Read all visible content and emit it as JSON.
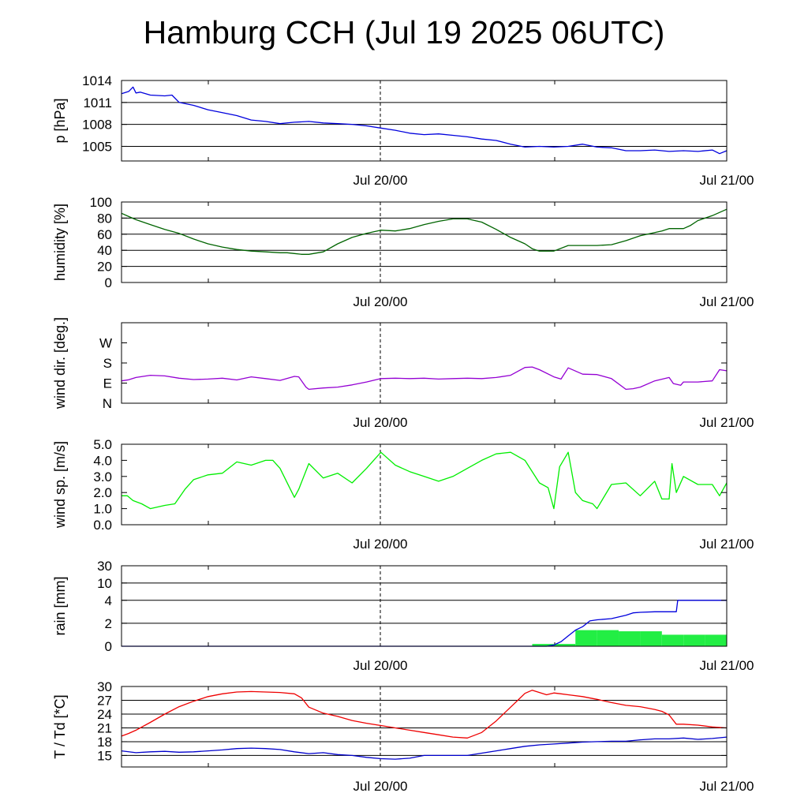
{
  "title": "Hamburg CCH (Jul 19 2025 06UTC)",
  "colors": {
    "pressure": "#0000dd",
    "humidity": "#006400",
    "wind_dir": "#9400d3",
    "wind_speed": "#00ee00",
    "rain_cumulative": "#0000dd",
    "rain_bars": "#22ee44",
    "temperature": "#ee0000",
    "dewpoint": "#0000cc"
  },
  "chart_data": [
    {
      "id": "pressure",
      "type": "line",
      "ylabel": "p [hPa]",
      "x_unit": "hours since Jul 19 06UTC",
      "xlim": [
        0,
        42
      ],
      "ylim": [
        1003,
        1014
      ],
      "yticks": [
        1005,
        1008,
        1011,
        1014
      ],
      "ytick_labels": [
        "1005",
        "1008",
        "1011",
        "1014"
      ],
      "grid_y": [
        1005,
        1008,
        1011,
        1014
      ],
      "xtick_labels": [
        "Jul 20/00",
        "Jul 21/00"
      ],
      "series": [
        {
          "color_key": "pressure",
          "x": [
            0,
            0.5,
            0.8,
            1.0,
            1.3,
            2,
            3,
            3.5,
            4,
            5,
            6,
            7,
            8,
            9,
            10,
            11,
            12,
            13,
            14,
            15,
            16,
            17,
            18,
            19,
            20,
            21,
            22,
            23,
            24,
            25,
            26,
            27,
            28,
            29,
            30,
            31,
            32,
            33,
            34,
            35,
            36,
            37,
            38,
            39,
            40,
            41,
            41.5,
            42
          ],
          "y": [
            1012.2,
            1012.5,
            1013.1,
            1012.3,
            1012.4,
            1012.0,
            1011.9,
            1012.0,
            1011.0,
            1010.6,
            1010.0,
            1009.6,
            1009.2,
            1008.6,
            1008.4,
            1008.1,
            1008.3,
            1008.4,
            1008.2,
            1008.1,
            1008.0,
            1007.8,
            1007.5,
            1007.2,
            1006.8,
            1006.6,
            1006.7,
            1006.5,
            1006.3,
            1006.0,
            1005.8,
            1005.3,
            1004.9,
            1005.0,
            1004.9,
            1005.0,
            1005.3,
            1004.9,
            1004.8,
            1004.4,
            1004.4,
            1004.5,
            1004.3,
            1004.4,
            1004.3,
            1004.5,
            1004.0,
            1004.4
          ]
        }
      ]
    },
    {
      "id": "humidity",
      "type": "line",
      "ylabel": "humidity [%]",
      "x_unit": "hours since Jul 19 06UTC",
      "xlim": [
        0,
        42
      ],
      "ylim": [
        0,
        100
      ],
      "yticks": [
        0,
        20,
        40,
        60,
        80,
        100
      ],
      "ytick_labels": [
        "0",
        "20",
        "40",
        "60",
        "80",
        "100"
      ],
      "grid_y": [
        20,
        40,
        60,
        80
      ],
      "xtick_labels": [
        "Jul 20/00",
        "Jul 21/00"
      ],
      "series": [
        {
          "color_key": "humidity",
          "x": [
            0,
            0.5,
            1,
            2,
            3,
            4,
            5,
            6,
            7,
            8,
            9,
            10,
            11,
            11.5,
            12,
            12.5,
            13,
            14,
            15,
            16,
            17,
            18,
            19,
            20,
            21,
            22,
            23,
            24,
            25,
            26,
            27,
            28,
            28.5,
            29,
            30,
            31,
            32,
            33,
            34,
            35,
            36,
            37,
            37.5,
            38,
            39,
            39.5,
            40,
            41,
            42
          ],
          "y": [
            86,
            82,
            78,
            72,
            66,
            61,
            54,
            48,
            44,
            41,
            39,
            38,
            37,
            37,
            36,
            35,
            35,
            38,
            48,
            56,
            61,
            65,
            64,
            67,
            72,
            76,
            79,
            79,
            75,
            66,
            56,
            48,
            42,
            39,
            39,
            46,
            46,
            46,
            47,
            52,
            58,
            62,
            64,
            67,
            67,
            71,
            77,
            83,
            91
          ]
        }
      ]
    },
    {
      "id": "wind_dir",
      "type": "line",
      "ylabel": "wind dir. [deg.]",
      "x_unit": "hours since Jul 19 06UTC",
      "xlim": [
        0,
        42
      ],
      "ylim": [
        0,
        360
      ],
      "yticks": [
        0,
        90,
        180,
        270
      ],
      "ytick_labels": [
        "N",
        "E",
        "S",
        "W"
      ],
      "grid_y": [],
      "xtick_labels": [
        "Jul 20/00",
        "Jul 21/00"
      ],
      "series": [
        {
          "color_key": "wind_dir",
          "x": [
            0,
            0.5,
            1,
            2,
            3,
            4,
            5,
            6,
            7,
            8,
            9,
            10,
            11,
            12,
            12.3,
            12.8,
            13,
            14,
            15,
            16,
            17,
            18,
            19,
            20,
            21,
            22,
            23,
            24,
            25,
            26,
            27,
            28,
            28.5,
            29,
            30,
            30.5,
            31,
            32,
            33,
            34,
            35,
            35.5,
            36,
            37,
            38,
            38.3,
            38.8,
            39,
            40,
            41,
            41.5,
            42
          ],
          "y": [
            100,
            105,
            115,
            125,
            122,
            112,
            106,
            108,
            112,
            104,
            118,
            110,
            102,
            120,
            118,
            72,
            62,
            68,
            72,
            82,
            95,
            110,
            112,
            110,
            112,
            108,
            110,
            112,
            110,
            115,
            125,
            160,
            162,
            150,
            118,
            108,
            158,
            130,
            128,
            110,
            62,
            65,
            72,
            100,
            115,
            88,
            80,
            95,
            95,
            100,
            150,
            145
          ]
        }
      ]
    },
    {
      "id": "wind_speed",
      "type": "line",
      "ylabel": "wind sp. [m/s]",
      "x_unit": "hours since Jul 19 06UTC",
      "xlim": [
        0,
        42
      ],
      "ylim": [
        0,
        5
      ],
      "yticks": [
        0,
        1,
        2,
        3,
        4,
        5
      ],
      "ytick_labels": [
        "0.0",
        "1.0",
        "2.0",
        "3.0",
        "4.0",
        "5.0"
      ],
      "grid_y": [],
      "xtick_labels": [
        "Jul 20/00",
        "Jul 21/00"
      ],
      "series": [
        {
          "color_key": "wind_speed",
          "x": [
            0,
            0.4,
            0.8,
            1.4,
            2,
            3,
            3.7,
            4.4,
            5,
            6,
            7,
            8,
            9,
            10,
            10.5,
            11,
            12,
            12.3,
            13,
            14,
            15,
            16,
            17,
            18,
            19,
            20,
            21,
            22,
            23,
            24,
            25,
            26,
            27,
            28,
            29,
            29.6,
            30,
            30.4,
            31,
            31.5,
            32,
            32.7,
            33,
            34,
            35,
            36,
            37,
            37.5,
            38,
            38.2,
            38.5,
            39,
            40,
            41,
            41.5,
            42
          ],
          "y": [
            1.8,
            1.8,
            1.5,
            1.3,
            1.0,
            1.2,
            1.3,
            2.2,
            2.8,
            3.1,
            3.2,
            3.9,
            3.7,
            4.0,
            4.0,
            3.5,
            1.7,
            2.2,
            3.8,
            2.9,
            3.2,
            2.6,
            3.5,
            4.5,
            3.7,
            3.3,
            3.0,
            2.7,
            3.0,
            3.5,
            4.0,
            4.4,
            4.5,
            4.0,
            2.6,
            2.3,
            1.0,
            3.6,
            4.5,
            2.0,
            1.5,
            1.3,
            1.0,
            2.5,
            2.6,
            1.8,
            2.7,
            1.6,
            1.6,
            3.8,
            2.0,
            3.0,
            2.5,
            2.5,
            1.8,
            2.6
          ]
        }
      ]
    },
    {
      "id": "rain",
      "type": "bar+line",
      "ylabel": "rain [mm]",
      "x_unit": "hours since Jul 19 06UTC",
      "xlim": [
        0,
        42
      ],
      "ylim": [
        0,
        30
      ],
      "scale": "nonlinear",
      "yticks": [
        0,
        2,
        4,
        10,
        30
      ],
      "ytick_labels": [
        "0",
        "2",
        "4",
        "10",
        "30"
      ],
      "grid_y": [
        2,
        4,
        10,
        30
      ],
      "xtick_labels": [
        "Jul 20/00",
        "Jul 21/00"
      ],
      "bars": {
        "color_key": "rain_bars",
        "x0": [
          28.5,
          30.0,
          31.5,
          33.0,
          34.5,
          36.0,
          37.5,
          39.0,
          40.5
        ],
        "x1": [
          30.0,
          31.5,
          33.0,
          34.5,
          36.0,
          37.5,
          39.0,
          40.5,
          42.0
        ],
        "y": [
          0.2,
          0.2,
          1.4,
          1.4,
          1.3,
          1.3,
          1.0,
          1.0,
          1.0
        ]
      },
      "cumulative": {
        "color_key": "rain_cumulative",
        "x": [
          0,
          29.5,
          30,
          30.5,
          31,
          31.5,
          32,
          32.5,
          33,
          34,
          35,
          35.5,
          36,
          37,
          38,
          38.5,
          38.6,
          40,
          41,
          42
        ],
        "y": [
          0,
          0,
          0.1,
          0.4,
          0.9,
          1.4,
          1.7,
          2.2,
          2.3,
          2.4,
          2.7,
          2.9,
          2.95,
          3.0,
          3.0,
          3.0,
          4.0,
          4.0,
          4.0,
          4.0
        ]
      }
    },
    {
      "id": "temperature",
      "type": "line",
      "ylabel": "T / Td [*C]",
      "x_unit": "hours since Jul 19 06UTC",
      "xlim": [
        0,
        42
      ],
      "ylim": [
        12.5,
        30
      ],
      "yticks": [
        15,
        18,
        21,
        24,
        27,
        30
      ],
      "ytick_labels": [
        "15",
        "18",
        "21",
        "24",
        "27",
        "30"
      ],
      "grid_y": [
        15,
        18,
        21,
        24,
        27,
        30
      ],
      "xtick_labels": [
        "Jul 20/00",
        "Jul 21/00"
      ],
      "series": [
        {
          "color_key": "temperature",
          "x": [
            0,
            0.5,
            1,
            2,
            3,
            4,
            5,
            6,
            7,
            8,
            9,
            10,
            11,
            12,
            12.5,
            13,
            14,
            15,
            16,
            17,
            18,
            19,
            20,
            21,
            22,
            23,
            24,
            25,
            26,
            27,
            27.5,
            28,
            28.5,
            29,
            29.5,
            30,
            30.5,
            31,
            32,
            33,
            34,
            35,
            36,
            37,
            37.5,
            38,
            38.5,
            39,
            40,
            41,
            42
          ],
          "y": [
            19.2,
            19.8,
            20.5,
            22.2,
            24.0,
            25.6,
            26.8,
            27.8,
            28.4,
            28.8,
            28.9,
            28.8,
            28.7,
            28.4,
            27.5,
            25.5,
            24.2,
            23.5,
            22.6,
            22.0,
            21.5,
            21.0,
            20.5,
            20.0,
            19.5,
            19.0,
            18.8,
            20.0,
            22.5,
            25.5,
            27.0,
            28.5,
            29.2,
            28.7,
            28.2,
            28.6,
            28.4,
            28.2,
            27.8,
            27.2,
            26.5,
            25.9,
            25.6,
            25.0,
            24.6,
            23.8,
            21.8,
            21.8,
            21.6,
            21.2,
            21.0
          ]
        },
        {
          "color_key": "dewpoint",
          "x": [
            0,
            1,
            2,
            3,
            4,
            5,
            6,
            7,
            8,
            9,
            10,
            11,
            12,
            13,
            14,
            15,
            16,
            17,
            18,
            19,
            20,
            21,
            22,
            23,
            24,
            25,
            26,
            27,
            28,
            29,
            30,
            31,
            32,
            33,
            34,
            35,
            36,
            37,
            38,
            39,
            40,
            41,
            42
          ],
          "y": [
            16.0,
            15.6,
            15.8,
            15.9,
            15.7,
            15.8,
            16.0,
            16.2,
            16.5,
            16.6,
            16.5,
            16.3,
            15.8,
            15.4,
            15.6,
            15.2,
            15.0,
            14.6,
            14.3,
            14.2,
            14.4,
            15.0,
            15.0,
            15.0,
            15.0,
            15.5,
            16.0,
            16.5,
            17.0,
            17.3,
            17.5,
            17.7,
            17.9,
            18.0,
            18.1,
            18.1,
            18.4,
            18.6,
            18.6,
            18.8,
            18.5,
            18.7,
            19.0
          ]
        }
      ]
    }
  ]
}
